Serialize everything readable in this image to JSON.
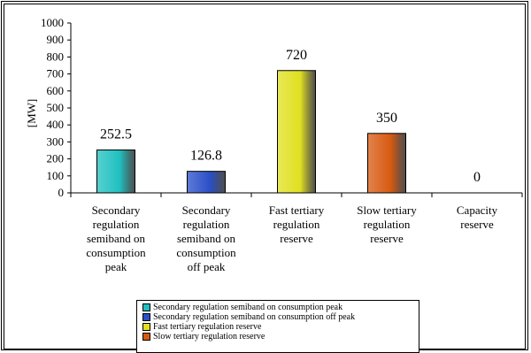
{
  "chart_data": {
    "type": "bar",
    "ylabel": "[MW]",
    "ylim": [
      0,
      1000
    ],
    "yticks": [
      0,
      100,
      200,
      300,
      400,
      500,
      600,
      700,
      800,
      900,
      1000
    ],
    "grid": false,
    "legend_position": "bottom",
    "categories": [
      "Secondary regulation semiband on consumption peak",
      "Secondary regulation semiband on consumption off peak",
      "Fast tertiary regulation reserve",
      "Slow tertiary regulation reserve",
      "Capacity reserve"
    ],
    "category_label_lines": [
      [
        "Secondary",
        "regulation",
        "semiband on",
        "consumption",
        "peak"
      ],
      [
        "Secondary",
        "regulation",
        "semiband on",
        "consumption",
        "off peak"
      ],
      [
        "Fast tertiary",
        "regulation",
        "reserve"
      ],
      [
        "Slow tertiary",
        "regulation",
        "reserve"
      ],
      [
        "Capacity",
        "reserve"
      ]
    ],
    "values": [
      252.5,
      126.8,
      720,
      350,
      0
    ],
    "data_labels": [
      "252.5",
      "126.8",
      "720",
      "350",
      "0"
    ],
    "colors": [
      "#20c0c0",
      "#2a4fc8",
      "#e0e020",
      "#d85a10",
      "#ffffff"
    ],
    "legend": [
      {
        "label": "Secondary regulation semiband on consumption peak",
        "color": "#20c0c0"
      },
      {
        "label": "Secondary regulation semiband on consumption off peak",
        "color": "#2a4fc8"
      },
      {
        "label": "Fast tertiary regulation reserve",
        "color": "#e0e020"
      },
      {
        "label": "Slow tertiary regulation reserve",
        "color": "#d85a10"
      }
    ]
  }
}
